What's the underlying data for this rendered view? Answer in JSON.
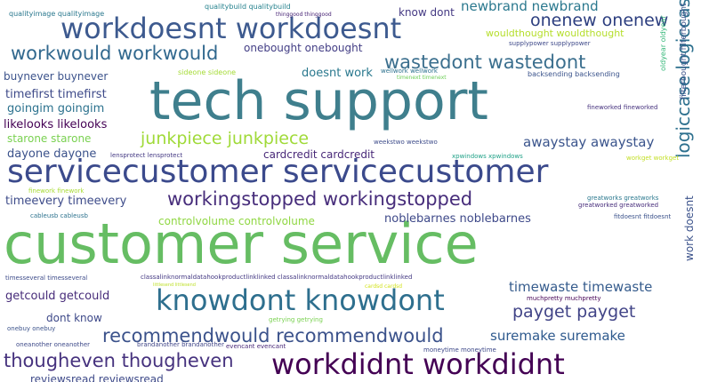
{
  "words": [
    {
      "text": "tech support",
      "color": "#3f7f8d"
    },
    {
      "text": "customer service",
      "color": "#66bd63"
    },
    {
      "text": "servicecustomer servicecustomer",
      "color": "#3b4a8c"
    },
    {
      "text": "workdoesnt workdoesnt",
      "color": "#3d5a8f"
    },
    {
      "text": "knowdont knowdont",
      "color": "#2e6f8e"
    },
    {
      "text": "workdidnt workdidnt",
      "color": "#440154"
    },
    {
      "text": "workingstopped workingstopped",
      "color": "#472d7b"
    },
    {
      "text": "wastedont wastedont",
      "color": "#3b6f8e"
    },
    {
      "text": "workwould workwould",
      "color": "#31688e"
    },
    {
      "text": "recommendwould recommendwould",
      "color": "#3b528b"
    },
    {
      "text": "thougheven thougheven",
      "color": "#46327e"
    },
    {
      "text": "junkpiece junkpiece",
      "color": "#a0da39"
    },
    {
      "text": "onenew onenew",
      "color": "#2c3e7f"
    },
    {
      "text": "payget payget",
      "color": "#414487"
    },
    {
      "text": "suremake suremake",
      "color": "#2f5a8e"
    },
    {
      "text": "timewaste timewaste",
      "color": "#365c8d"
    },
    {
      "text": "newbrand newbrand",
      "color": "#2a788e"
    },
    {
      "text": "awaystay awaystay",
      "color": "#3a548c"
    },
    {
      "text": "logiccase logiccase",
      "color": "#2d708e"
    },
    {
      "text": "noblebarnes noblebarnes",
      "color": "#3e4989"
    },
    {
      "text": "cardcredit cardcredit",
      "color": "#482878"
    },
    {
      "text": "timeevery timeevery",
      "color": "#3e4c8a"
    },
    {
      "text": "controlvolume controlvolume",
      "color": "#90d743"
    },
    {
      "text": "getcould getcould",
      "color": "#472c7a"
    },
    {
      "text": "dayone dayone",
      "color": "#3b528b"
    },
    {
      "text": "timefirst timefirst",
      "color": "#3e4a89"
    },
    {
      "text": "goingim goingim",
      "color": "#2c728e"
    },
    {
      "text": "likelooks likelooks",
      "color": "#440154"
    },
    {
      "text": "starone starone",
      "color": "#7ad151"
    },
    {
      "text": "buynever buynever",
      "color": "#3b528b"
    },
    {
      "text": "wouldthought wouldthought",
      "color": "#b5de2b"
    },
    {
      "text": "onebought onebought",
      "color": "#433e85"
    },
    {
      "text": "doesnt work",
      "color": "#2a788e"
    },
    {
      "text": "know dont",
      "color": "#443983"
    },
    {
      "text": "dont know",
      "color": "#3e4989"
    },
    {
      "text": "reviewsread reviewsread",
      "color": "#3e4a89"
    },
    {
      "text": "work doesnt",
      "color": "#3b528b"
    },
    {
      "text": "qualitybuild qualitybuild",
      "color": "#26828e"
    },
    {
      "text": "qualityimage qualityimage",
      "color": "#2a788e"
    },
    {
      "text": "supplypower supplypower",
      "color": "#3e4989"
    },
    {
      "text": "sideone sideone",
      "color": "#a5db36"
    },
    {
      "text": "backsending backsending",
      "color": "#3a538b"
    },
    {
      "text": "wellwork wellwork",
      "color": "#2c718e"
    },
    {
      "text": "timenext timenext",
      "color": "#6ece58"
    },
    {
      "text": "thinggood thinggood",
      "color": "#482475"
    },
    {
      "text": "oldyear oldyear",
      "color": "#35b779"
    },
    {
      "text": "filterbought filterbought",
      "color": "#3b528b"
    },
    {
      "text": "fineworked fineworked",
      "color": "#46327e"
    },
    {
      "text": "weekstwo weekstwo",
      "color": "#3e4c8a"
    },
    {
      "text": "xpwindows xpwindows",
      "color": "#1fa187"
    },
    {
      "text": "workget workget",
      "color": "#c2df23"
    },
    {
      "text": "lensprotect lensprotect",
      "color": "#443983"
    },
    {
      "text": "greatworks greatworks",
      "color": "#2a788e"
    },
    {
      "text": "greatworked greatworked",
      "color": "#472d7b"
    },
    {
      "text": "fitdoesnt fitdoesnt",
      "color": "#3b528b"
    },
    {
      "text": "finework finework",
      "color": "#a8db34"
    },
    {
      "text": "cableusb cableusb",
      "color": "#2c728e"
    },
    {
      "text": "timesseveral timesseveral",
      "color": "#3e4c8a"
    },
    {
      "text": "classalinknormaldatahookproductlinklinked classalinknormaldatahookproductlinklinked",
      "color": "#443983"
    },
    {
      "text": "littlesend littlesend",
      "color": "#bddf26"
    },
    {
      "text": "cardsd cardsd",
      "color": "#d2e21b"
    },
    {
      "text": "muchpretty muchpretty",
      "color": "#440154"
    },
    {
      "text": "getrying getrying",
      "color": "#7ad151"
    },
    {
      "text": "onebuy onebuy",
      "color": "#3b528b"
    },
    {
      "text": "oneanother oneanother",
      "color": "#3e4a89"
    },
    {
      "text": "brandanother brandanother",
      "color": "#404688"
    },
    {
      "text": "evencant evencant",
      "color": "#482878"
    },
    {
      "text": "moneytime moneytime",
      "color": "#3e4989"
    }
  ]
}
